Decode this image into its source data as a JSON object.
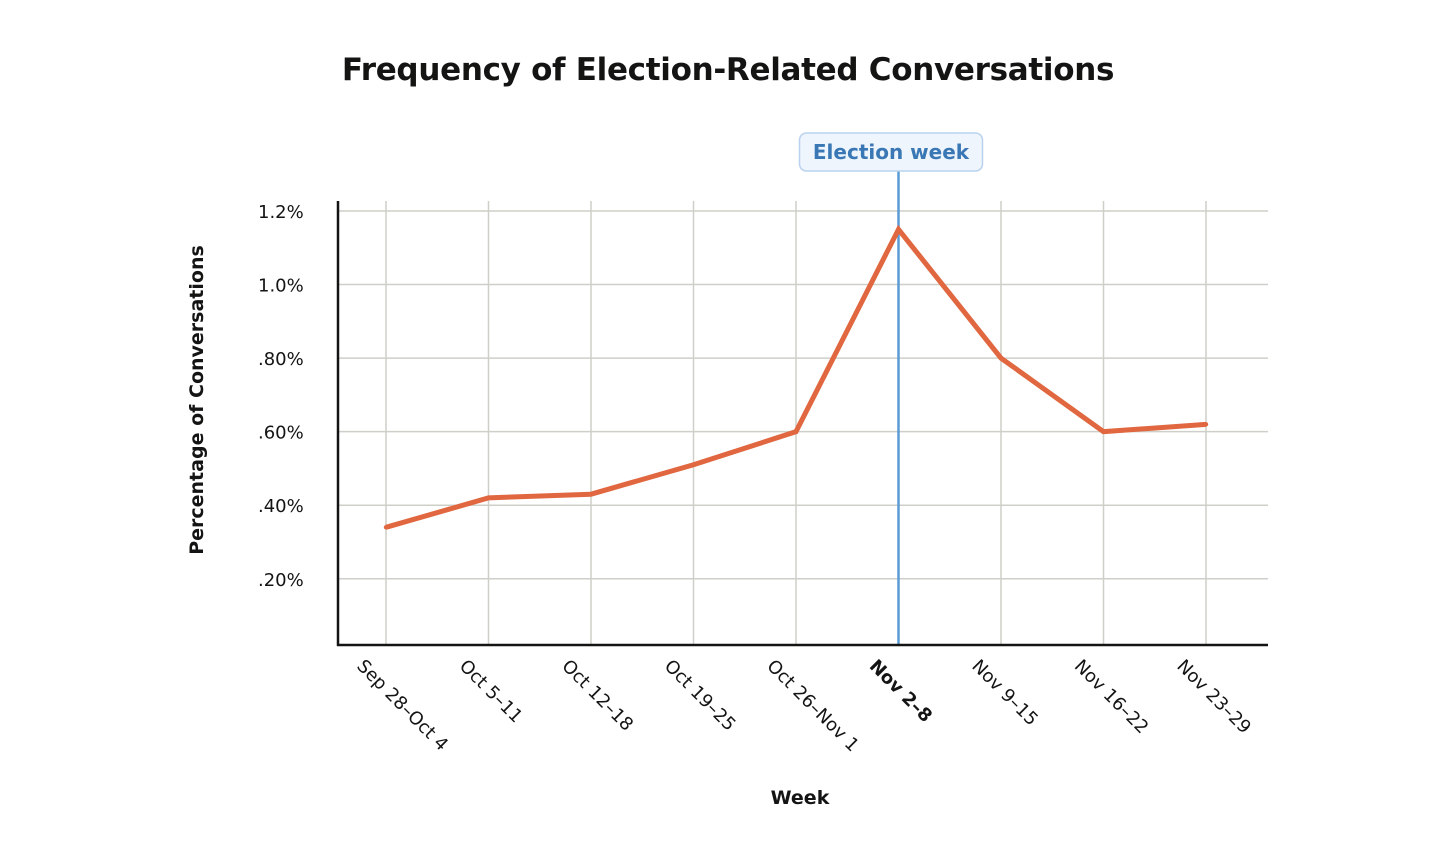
{
  "chart_data": {
    "type": "line",
    "title": "Frequency of Election-Related Conversations",
    "xlabel": "Week",
    "ylabel": "Percentage of Conversations",
    "categories": [
      "Sep 28–Oct 4",
      "Oct 5–11",
      "Oct 12–18",
      "Oct 19–25",
      "Oct 26–Nov 1",
      "Nov 2–8",
      "Nov 9–15",
      "Nov 16–22",
      "Nov 23–29"
    ],
    "highlight_category": "Nov 2–8",
    "series": [
      {
        "values": [
          0.34,
          0.42,
          0.43,
          0.51,
          0.6,
          1.15,
          0.8,
          0.6,
          0.62
        ]
      }
    ],
    "y_ticks": [
      0.2,
      0.4,
      0.6,
      0.8,
      1.0,
      1.2
    ],
    "y_tick_labels": [
      ".20%",
      ".40%",
      ".60%",
      ".80%",
      "1.0%",
      "1.2%"
    ],
    "ylim": [
      0.02,
      1.2
    ],
    "grid": true,
    "annotation": {
      "label": "Election week",
      "category": "Nov 2–8"
    },
    "colors": {
      "line": "#e0673f",
      "annotation_line": "#5b9bd5",
      "annotation_text": "#3a77b5",
      "annotation_bg": "#eef5fc",
      "annotation_border": "#b9d3ee",
      "grid": "#cfcfc9",
      "axis": "#141413"
    }
  }
}
